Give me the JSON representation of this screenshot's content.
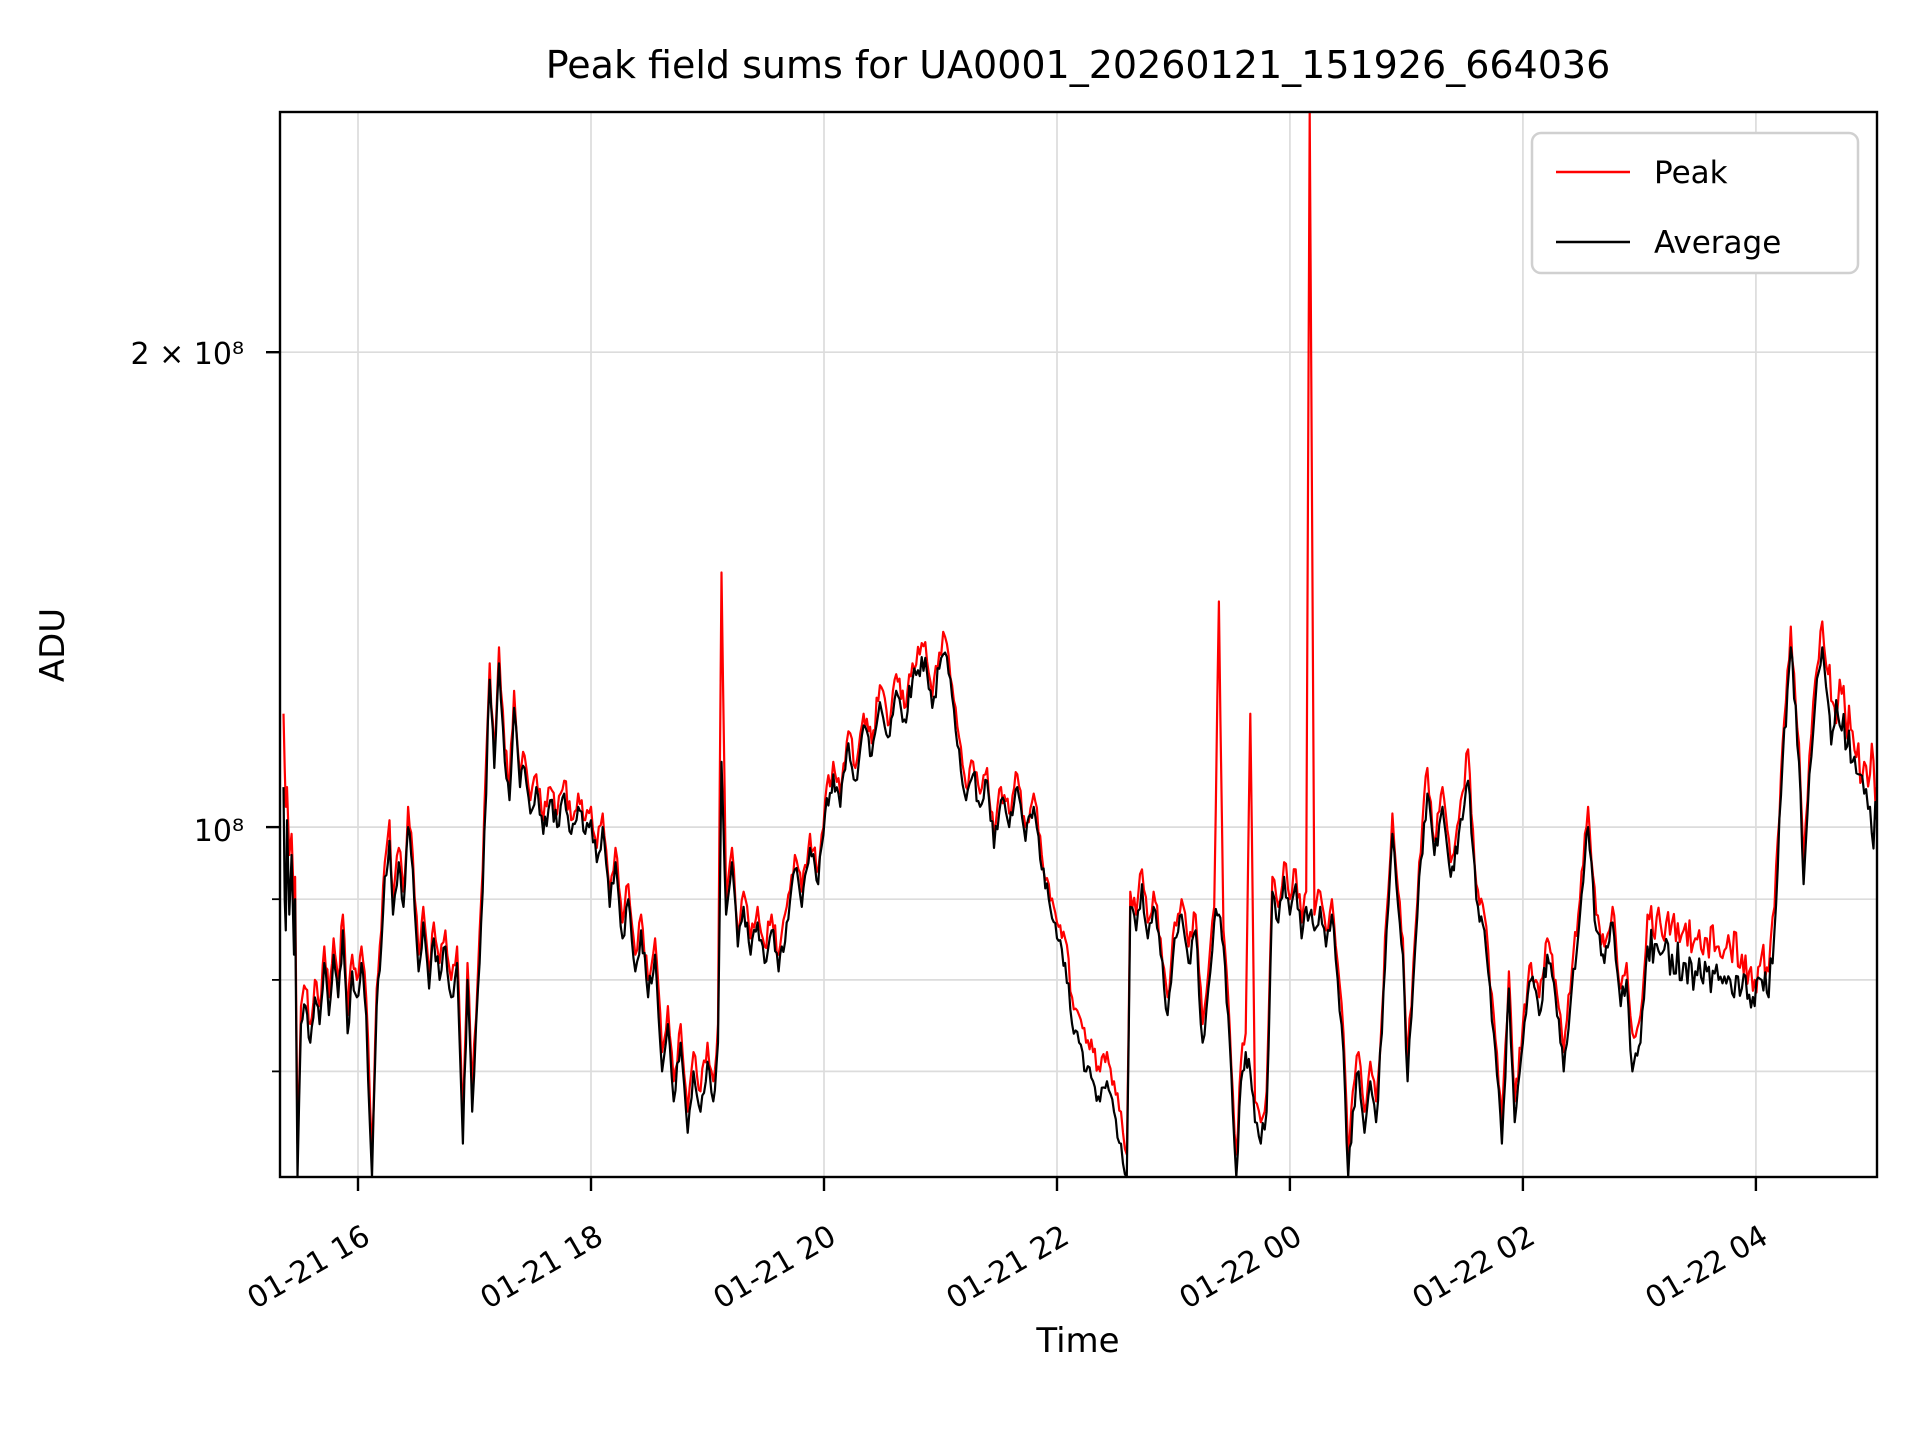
{
  "title": "Peak field sums for UA0001_20260121_151926_664036",
  "axes": {
    "xlabel": "Time",
    "ylabel": "ADU",
    "y_tick_labels": [
      "2 × 10⁸",
      "10⁸"
    ]
  },
  "legend": {
    "entries": [
      {
        "label": "Peak",
        "color": "#ff0000"
      },
      {
        "label": "Average",
        "color": "#000000"
      }
    ]
  },
  "colors": {
    "peak": "#ff0000",
    "average": "#000000",
    "grid": "#dcdcdc",
    "legend_border": "#d0d0d0",
    "spine": "#000000"
  },
  "chart_data": {
    "type": "line",
    "title": "Peak field sums for UA0001_20260121_151926_664036",
    "xlabel": "Time",
    "ylabel": "ADU",
    "y_scale": "log",
    "value_scale": 10000000,
    "ylim_e7": [
      6.0,
      28.4
    ],
    "xlim_hours": [
      0,
      13.71
    ],
    "x_origin": "2026-01-21 15:20",
    "x_tick_hours": [
      0.67,
      2.67,
      4.67,
      6.67,
      8.67,
      10.67,
      12.67
    ],
    "x_tick_labels": [
      "01-21 16",
      "01-21 18",
      "01-21 20",
      "01-21 22",
      "01-22 00",
      "01-22 02",
      "01-22 04"
    ],
    "gridlines_e7": [
      7,
      8,
      9,
      10,
      20
    ],
    "y_major_ticks_e7": [
      10,
      20
    ],
    "y_minor_ticks_e7": [
      7,
      8,
      9
    ],
    "legend_position": "upper right",
    "grid": true,
    "series_names": [
      "Peak",
      "Average"
    ],
    "render_noise_log10": 0.007,
    "points_format": [
      "t_hours",
      "average_e7",
      "peak_e7"
    ],
    "points": [
      [
        0.03,
        10.6,
        11.8
      ],
      [
        0.04,
        9.0,
        10.9
      ],
      [
        0.05,
        8.6,
        10.3
      ],
      [
        0.06,
        10.1,
        10.6
      ],
      [
        0.08,
        8.8,
        9.6
      ],
      [
        0.1,
        9.6,
        9.9
      ],
      [
        0.12,
        8.3,
        8.9
      ],
      [
        0.13,
        9.0,
        9.3
      ],
      [
        0.15,
        6.0,
        6.3
      ],
      [
        0.18,
        7.5,
        7.7
      ],
      [
        0.22,
        7.7,
        7.9
      ],
      [
        0.26,
        7.3,
        7.5
      ],
      [
        0.3,
        7.8,
        8.0
      ],
      [
        0.34,
        7.5,
        7.7
      ],
      [
        0.38,
        8.2,
        8.4
      ],
      [
        0.42,
        7.6,
        7.8
      ],
      [
        0.46,
        8.3,
        8.5
      ],
      [
        0.5,
        7.8,
        8.0
      ],
      [
        0.54,
        8.6,
        8.8
      ],
      [
        0.58,
        7.4,
        7.6
      ],
      [
        0.62,
        8.1,
        8.3
      ],
      [
        0.66,
        7.8,
        8.0
      ],
      [
        0.7,
        8.2,
        8.4
      ],
      [
        0.74,
        7.6,
        7.8
      ],
      [
        0.79,
        6.0,
        6.2
      ],
      [
        0.83,
        7.7,
        7.9
      ],
      [
        0.87,
        8.4,
        8.6
      ],
      [
        0.9,
        9.3,
        9.5
      ],
      [
        0.94,
        9.8,
        10.1
      ],
      [
        0.97,
        8.8,
        9.0
      ],
      [
        1.02,
        9.5,
        9.7
      ],
      [
        1.06,
        8.9,
        9.1
      ],
      [
        1.1,
        10.0,
        10.3
      ],
      [
        1.14,
        9.4,
        9.6
      ],
      [
        1.19,
        8.1,
        8.3
      ],
      [
        1.23,
        8.7,
        8.9
      ],
      [
        1.28,
        7.9,
        8.1
      ],
      [
        1.32,
        8.5,
        8.7
      ],
      [
        1.37,
        8.0,
        8.2
      ],
      [
        1.42,
        8.4,
        8.6
      ],
      [
        1.47,
        7.8,
        8.0
      ],
      [
        1.52,
        8.2,
        8.4
      ],
      [
        1.57,
        6.3,
        6.5
      ],
      [
        1.61,
        8.0,
        8.2
      ],
      [
        1.65,
        6.6,
        6.8
      ],
      [
        1.7,
        7.9,
        8.1
      ],
      [
        1.74,
        9.1,
        9.4
      ],
      [
        1.8,
        12.4,
        12.7
      ],
      [
        1.84,
        10.9,
        11.1
      ],
      [
        1.88,
        12.7,
        13.0
      ],
      [
        1.93,
        11.0,
        11.2
      ],
      [
        1.97,
        10.4,
        10.6
      ],
      [
        2.01,
        11.9,
        12.2
      ],
      [
        2.06,
        10.6,
        10.8
      ],
      [
        2.1,
        10.9,
        11.1
      ],
      [
        2.15,
        10.2,
        10.4
      ],
      [
        2.2,
        10.6,
        10.8
      ],
      [
        2.26,
        9.9,
        10.1
      ],
      [
        2.32,
        10.4,
        10.6
      ],
      [
        2.38,
        10.0,
        10.2
      ],
      [
        2.44,
        10.5,
        10.7
      ],
      [
        2.5,
        9.9,
        10.1
      ],
      [
        2.56,
        10.3,
        10.5
      ],
      [
        2.62,
        9.9,
        10.1
      ],
      [
        2.67,
        10.1,
        10.3
      ],
      [
        2.72,
        9.5,
        9.7
      ],
      [
        2.77,
        10.0,
        10.2
      ],
      [
        2.83,
        8.9,
        9.1
      ],
      [
        2.88,
        9.5,
        9.7
      ],
      [
        2.94,
        8.5,
        8.7
      ],
      [
        2.99,
        9.0,
        9.2
      ],
      [
        3.05,
        8.1,
        8.3
      ],
      [
        3.1,
        8.6,
        8.8
      ],
      [
        3.16,
        7.8,
        8.0
      ],
      [
        3.22,
        8.3,
        8.5
      ],
      [
        3.28,
        7.0,
        7.2
      ],
      [
        3.33,
        7.5,
        7.7
      ],
      [
        3.38,
        6.7,
        6.9
      ],
      [
        3.44,
        7.3,
        7.5
      ],
      [
        3.5,
        6.4,
        6.6
      ],
      [
        3.55,
        7.0,
        7.2
      ],
      [
        3.61,
        6.6,
        6.8
      ],
      [
        3.67,
        7.1,
        7.3
      ],
      [
        3.72,
        6.7,
        6.9
      ],
      [
        3.76,
        7.3,
        7.5
      ],
      [
        3.79,
        11.0,
        14.5
      ],
      [
        3.83,
        8.8,
        9.0
      ],
      [
        3.88,
        9.5,
        9.7
      ],
      [
        3.93,
        8.4,
        8.6
      ],
      [
        3.98,
        8.9,
        9.1
      ],
      [
        4.04,
        8.3,
        8.5
      ],
      [
        4.1,
        8.7,
        8.9
      ],
      [
        4.16,
        8.2,
        8.4
      ],
      [
        4.22,
        8.6,
        8.8
      ],
      [
        4.28,
        8.1,
        8.3
      ],
      [
        4.35,
        8.7,
        8.9
      ],
      [
        4.42,
        9.4,
        9.6
      ],
      [
        4.48,
        8.9,
        9.1
      ],
      [
        4.55,
        9.7,
        9.9
      ],
      [
        4.62,
        9.2,
        9.4
      ],
      [
        4.68,
        10.2,
        10.4
      ],
      [
        4.75,
        10.8,
        11.0
      ],
      [
        4.81,
        10.3,
        10.5
      ],
      [
        4.88,
        11.3,
        11.5
      ],
      [
        4.94,
        10.7,
        10.9
      ],
      [
        5.01,
        11.6,
        11.8
      ],
      [
        5.08,
        11.1,
        11.3
      ],
      [
        5.15,
        12.0,
        12.3
      ],
      [
        5.22,
        11.4,
        11.6
      ],
      [
        5.29,
        12.2,
        12.5
      ],
      [
        5.36,
        11.7,
        11.9
      ],
      [
        5.43,
        12.4,
        12.7
      ],
      [
        5.54,
        12.8,
        13.1
      ],
      [
        5.6,
        11.9,
        12.1
      ],
      [
        5.66,
        12.6,
        12.9
      ],
      [
        5.71,
        12.9,
        13.2
      ],
      [
        5.77,
        12.1,
        12.3
      ],
      [
        5.83,
        11.2,
        11.4
      ],
      [
        5.89,
        10.4,
        10.6
      ],
      [
        5.95,
        10.8,
        11.0
      ],
      [
        6.01,
        10.3,
        10.5
      ],
      [
        6.07,
        10.7,
        10.9
      ],
      [
        6.13,
        9.7,
        9.9
      ],
      [
        6.19,
        10.4,
        10.6
      ],
      [
        6.26,
        10.0,
        10.2
      ],
      [
        6.33,
        10.6,
        10.8
      ],
      [
        6.4,
        9.8,
        10.0
      ],
      [
        6.47,
        10.3,
        10.5
      ],
      [
        6.54,
        9.4,
        9.6
      ],
      [
        6.6,
        9.0,
        9.2
      ],
      [
        6.67,
        8.5,
        8.7
      ],
      [
        6.74,
        8.2,
        8.5
      ],
      [
        6.8,
        7.5,
        7.8
      ],
      [
        6.86,
        7.3,
        7.6
      ],
      [
        6.92,
        7.0,
        7.3
      ],
      [
        6.98,
        6.9,
        7.2
      ],
      [
        7.04,
        6.7,
        7.0
      ],
      [
        7.1,
        6.9,
        7.2
      ],
      [
        7.16,
        6.6,
        6.9
      ],
      [
        7.22,
        6.3,
        6.6
      ],
      [
        7.27,
        6.0,
        6.2
      ],
      [
        7.3,
        8.9,
        9.1
      ],
      [
        7.35,
        8.6,
        8.8
      ],
      [
        7.4,
        9.2,
        9.4
      ],
      [
        7.45,
        8.5,
        8.7
      ],
      [
        7.5,
        8.9,
        9.1
      ],
      [
        7.56,
        8.3,
        8.5
      ],
      [
        7.62,
        7.6,
        7.8
      ],
      [
        7.68,
        8.5,
        8.7
      ],
      [
        7.74,
        8.8,
        9.0
      ],
      [
        7.8,
        8.2,
        8.4
      ],
      [
        7.86,
        8.6,
        8.8
      ],
      [
        7.92,
        7.3,
        7.5
      ],
      [
        7.97,
        7.9,
        8.1
      ],
      [
        8.02,
        8.7,
        8.9
      ],
      [
        8.06,
        8.8,
        13.9
      ],
      [
        8.1,
        8.4,
        8.6
      ],
      [
        8.14,
        7.6,
        7.8
      ],
      [
        8.18,
        6.6,
        6.8
      ],
      [
        8.21,
        6.0,
        6.2
      ],
      [
        8.25,
        6.9,
        7.1
      ],
      [
        8.29,
        7.2,
        7.4
      ],
      [
        8.33,
        7.0,
        11.8
      ],
      [
        8.37,
        6.5,
        6.7
      ],
      [
        8.42,
        6.3,
        6.5
      ],
      [
        8.47,
        6.6,
        6.8
      ],
      [
        8.52,
        9.1,
        9.3
      ],
      [
        8.57,
        8.7,
        8.9
      ],
      [
        8.62,
        9.3,
        9.5
      ],
      [
        8.67,
        8.8,
        9.0
      ],
      [
        8.72,
        9.2,
        9.4
      ],
      [
        8.77,
        8.5,
        8.7
      ],
      [
        8.81,
        8.9,
        9.1
      ],
      [
        8.84,
        8.8,
        29.0
      ],
      [
        8.88,
        8.6,
        8.8
      ],
      [
        8.93,
        8.9,
        9.1
      ],
      [
        8.98,
        8.4,
        8.6
      ],
      [
        9.03,
        8.8,
        9.0
      ],
      [
        9.08,
        8.0,
        8.2
      ],
      [
        9.13,
        7.2,
        7.4
      ],
      [
        9.17,
        6.0,
        6.2
      ],
      [
        9.21,
        6.6,
        6.8
      ],
      [
        9.26,
        7.0,
        7.2
      ],
      [
        9.31,
        6.4,
        6.6
      ],
      [
        9.36,
        6.9,
        7.1
      ],
      [
        9.41,
        6.5,
        6.7
      ],
      [
        9.46,
        7.4,
        7.6
      ],
      [
        9.5,
        8.6,
        8.8
      ],
      [
        9.55,
        9.9,
        10.2
      ],
      [
        9.6,
        8.9,
        9.1
      ],
      [
        9.64,
        8.3,
        8.5
      ],
      [
        9.68,
        6.9,
        7.1
      ],
      [
        9.73,
        8.0,
        8.2
      ],
      [
        9.78,
        9.3,
        9.5
      ],
      [
        9.85,
        10.5,
        10.9
      ],
      [
        9.91,
        9.6,
        9.8
      ],
      [
        9.98,
        10.3,
        10.6
      ],
      [
        10.05,
        9.3,
        9.5
      ],
      [
        10.12,
        9.9,
        10.1
      ],
      [
        10.2,
        10.7,
        11.2
      ],
      [
        10.27,
        9.0,
        9.2
      ],
      [
        10.34,
        8.6,
        8.8
      ],
      [
        10.42,
        7.4,
        7.6
      ],
      [
        10.49,
        6.3,
        6.5
      ],
      [
        10.55,
        7.9,
        8.1
      ],
      [
        10.6,
        6.5,
        6.7
      ],
      [
        10.67,
        7.3,
        7.5
      ],
      [
        10.74,
        8.0,
        8.2
      ],
      [
        10.81,
        7.6,
        7.8
      ],
      [
        10.88,
        8.3,
        8.5
      ],
      [
        10.95,
        7.8,
        8.0
      ],
      [
        11.02,
        7.0,
        7.2
      ],
      [
        11.09,
        7.9,
        8.1
      ],
      [
        11.16,
        8.8,
        9.0
      ],
      [
        11.23,
        10.0,
        10.3
      ],
      [
        11.3,
        8.6,
        8.8
      ],
      [
        11.37,
        8.2,
        8.4
      ],
      [
        11.44,
        8.7,
        8.9
      ],
      [
        11.51,
        7.7,
        7.9
      ],
      [
        11.56,
        8.0,
        8.2
      ],
      [
        11.61,
        7.0,
        7.4
      ],
      [
        11.68,
        7.3,
        7.6
      ],
      [
        11.74,
        8.4,
        8.8
      ],
      [
        11.85,
        8.3,
        8.7
      ],
      [
        11.95,
        8.3,
        8.7
      ],
      [
        12.05,
        8.2,
        8.6
      ],
      [
        12.15,
        8.1,
        8.5
      ],
      [
        12.25,
        8.1,
        8.5
      ],
      [
        12.35,
        8.0,
        8.4
      ],
      [
        12.45,
        8.0,
        8.4
      ],
      [
        12.55,
        7.9,
        8.3
      ],
      [
        12.66,
        7.7,
        8.0
      ],
      [
        12.72,
        8.0,
        8.3
      ],
      [
        12.78,
        7.8,
        8.1
      ],
      [
        12.83,
        8.6,
        8.9
      ],
      [
        12.9,
        11.0,
        11.3
      ],
      [
        12.97,
        13.0,
        13.4
      ],
      [
        13.04,
        11.0,
        11.3
      ],
      [
        13.08,
        9.2,
        9.5
      ],
      [
        13.13,
        10.8,
        11.1
      ],
      [
        13.18,
        12.0,
        12.4
      ],
      [
        13.24,
        13.0,
        13.5
      ],
      [
        13.29,
        12.0,
        12.5
      ],
      [
        13.33,
        11.5,
        12.0
      ],
      [
        13.39,
        11.6,
        12.4
      ],
      [
        13.44,
        11.2,
        11.7
      ],
      [
        13.5,
        11.0,
        11.5
      ],
      [
        13.55,
        10.8,
        11.3
      ],
      [
        13.6,
        10.5,
        11.0
      ],
      [
        13.65,
        10.3,
        10.8
      ],
      [
        13.71,
        10.1,
        10.6
      ]
    ]
  }
}
